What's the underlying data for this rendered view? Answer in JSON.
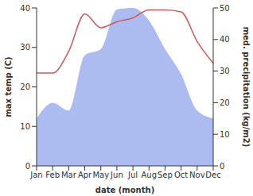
{
  "chart_data": {
    "type": "line",
    "xlabel": "date (month)",
    "ylabel": "max temp (C)",
    "y2label": "med. precipitation (kg/m2)",
    "categories": [
      "Jan",
      "Feb",
      "Mar",
      "Apr",
      "May",
      "Jun",
      "Jul",
      "Aug",
      "Sep",
      "Oct",
      "Nov",
      "Dec"
    ],
    "ylim": [
      0,
      40
    ],
    "yticks": [
      0,
      10,
      20,
      30,
      40
    ],
    "y2lim": [
      0,
      50
    ],
    "y2ticks": [
      0,
      10,
      20,
      30,
      40,
      50
    ],
    "grid": false,
    "series": [
      {
        "type": "area",
        "axis": "y2",
        "color": "#adbcf0",
        "values": [
          15,
          20,
          17.5,
          35,
          37,
          49.5,
          50,
          46,
          37,
          29,
          17.5,
          15
        ]
      },
      {
        "type": "line",
        "axis": "y",
        "color": "#d05a5a",
        "values": [
          23.5,
          23.5,
          29,
          38.5,
          35,
          36.5,
          37.5,
          39.5,
          39.5,
          39,
          31.5,
          26
        ]
      }
    ]
  }
}
